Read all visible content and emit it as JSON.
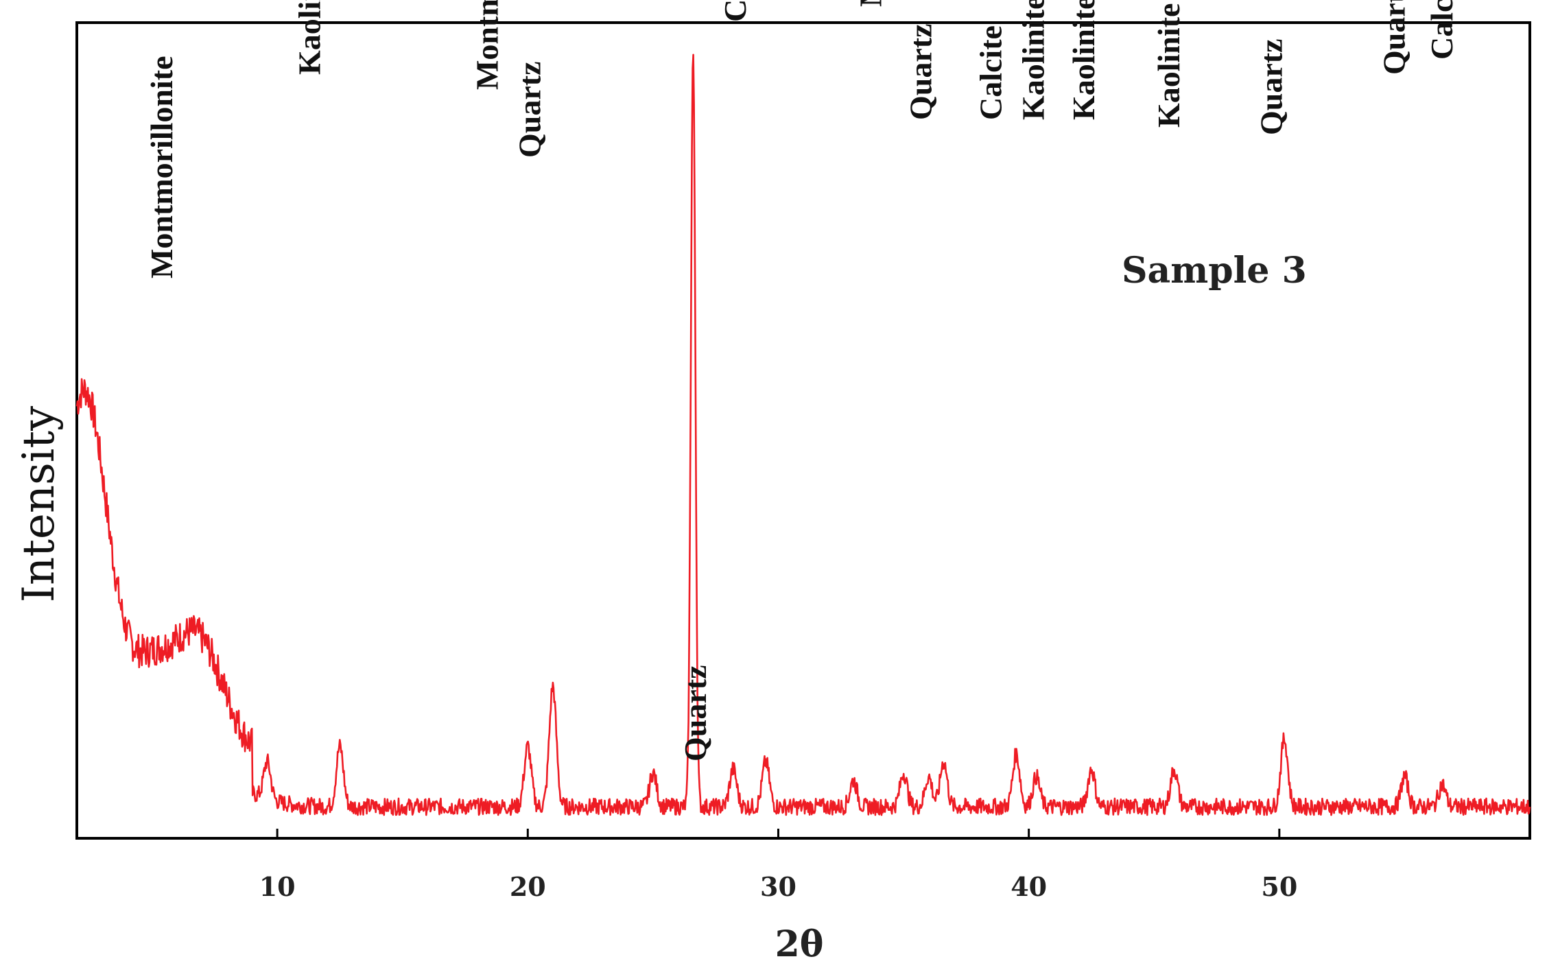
{
  "chart_data": {
    "type": "line",
    "title": "",
    "xlabel": "2θ",
    "ylabel": "Intensity",
    "annotation": "Sample 3",
    "xlim": [
      2,
      60
    ],
    "ylim": [
      0,
      100
    ],
    "xticks": [
      10,
      20,
      30,
      40,
      50
    ],
    "grid": false,
    "legend": "none",
    "line_color": "#ee1c24",
    "background": 2,
    "peaks": [
      {
        "x": 2.0,
        "y": 27
      },
      {
        "x": 2.6,
        "y": 18
      },
      {
        "x": 3.2,
        "y": 14
      },
      {
        "x": 4.4,
        "y": 9
      },
      {
        "x": 5.4,
        "y": 9
      },
      {
        "x": 6.5,
        "y": 10
      },
      {
        "x": 7.3,
        "y": 8
      },
      {
        "x": 8.2,
        "y": 5
      },
      {
        "x": 9.6,
        "y": 5
      },
      {
        "x": 12.5,
        "y": 8
      },
      {
        "x": 20.0,
        "y": 8
      },
      {
        "x": 21.0,
        "y": 16
      },
      {
        "x": 25.0,
        "y": 4.5
      },
      {
        "x": 26.6,
        "y": 100
      },
      {
        "x": 28.2,
        "y": 5
      },
      {
        "x": 29.5,
        "y": 6
      },
      {
        "x": 33.0,
        "y": 3.5
      },
      {
        "x": 35.0,
        "y": 4.5
      },
      {
        "x": 36.0,
        "y": 4
      },
      {
        "x": 36.6,
        "y": 6
      },
      {
        "x": 39.5,
        "y": 7
      },
      {
        "x": 40.3,
        "y": 4
      },
      {
        "x": 42.5,
        "y": 5
      },
      {
        "x": 45.8,
        "y": 5
      },
      {
        "x": 50.2,
        "y": 9
      },
      {
        "x": 55.0,
        "y": 4
      },
      {
        "x": 56.5,
        "y": 3
      }
    ],
    "annotations": [
      {
        "text": "Montmorillonite",
        "x": 4.6,
        "y": 72
      },
      {
        "text": "Kaolinite",
        "x": 10.5,
        "y": 99
      },
      {
        "text": "Montmorillonite",
        "x": 17.6,
        "y": 97
      },
      {
        "text": "Quartz",
        "x": 19.3,
        "y": 88
      },
      {
        "text": "Quartz",
        "x": 25.9,
        "y": 8
      },
      {
        "text": "Calcite",
        "x": 27.5,
        "y": 106
      },
      {
        "text": "Montmorillonite",
        "x": 32.9,
        "y": 108
      },
      {
        "text": "Quartz",
        "x": 34.9,
        "y": 93
      },
      {
        "text": "Calcite",
        "x": 37.7,
        "y": 93
      },
      {
        "text": "Kaolinite",
        "x": 39.4,
        "y": 93
      },
      {
        "text": "Kaolinite",
        "x": 41.4,
        "y": 93
      },
      {
        "text": "Kaolinite",
        "x": 44.8,
        "y": 92
      },
      {
        "text": "Quartz",
        "x": 48.9,
        "y": 91
      },
      {
        "text": "Quartz",
        "x": 53.8,
        "y": 99
      },
      {
        "text": "Calcite",
        "x": 55.7,
        "y": 101
      }
    ]
  }
}
